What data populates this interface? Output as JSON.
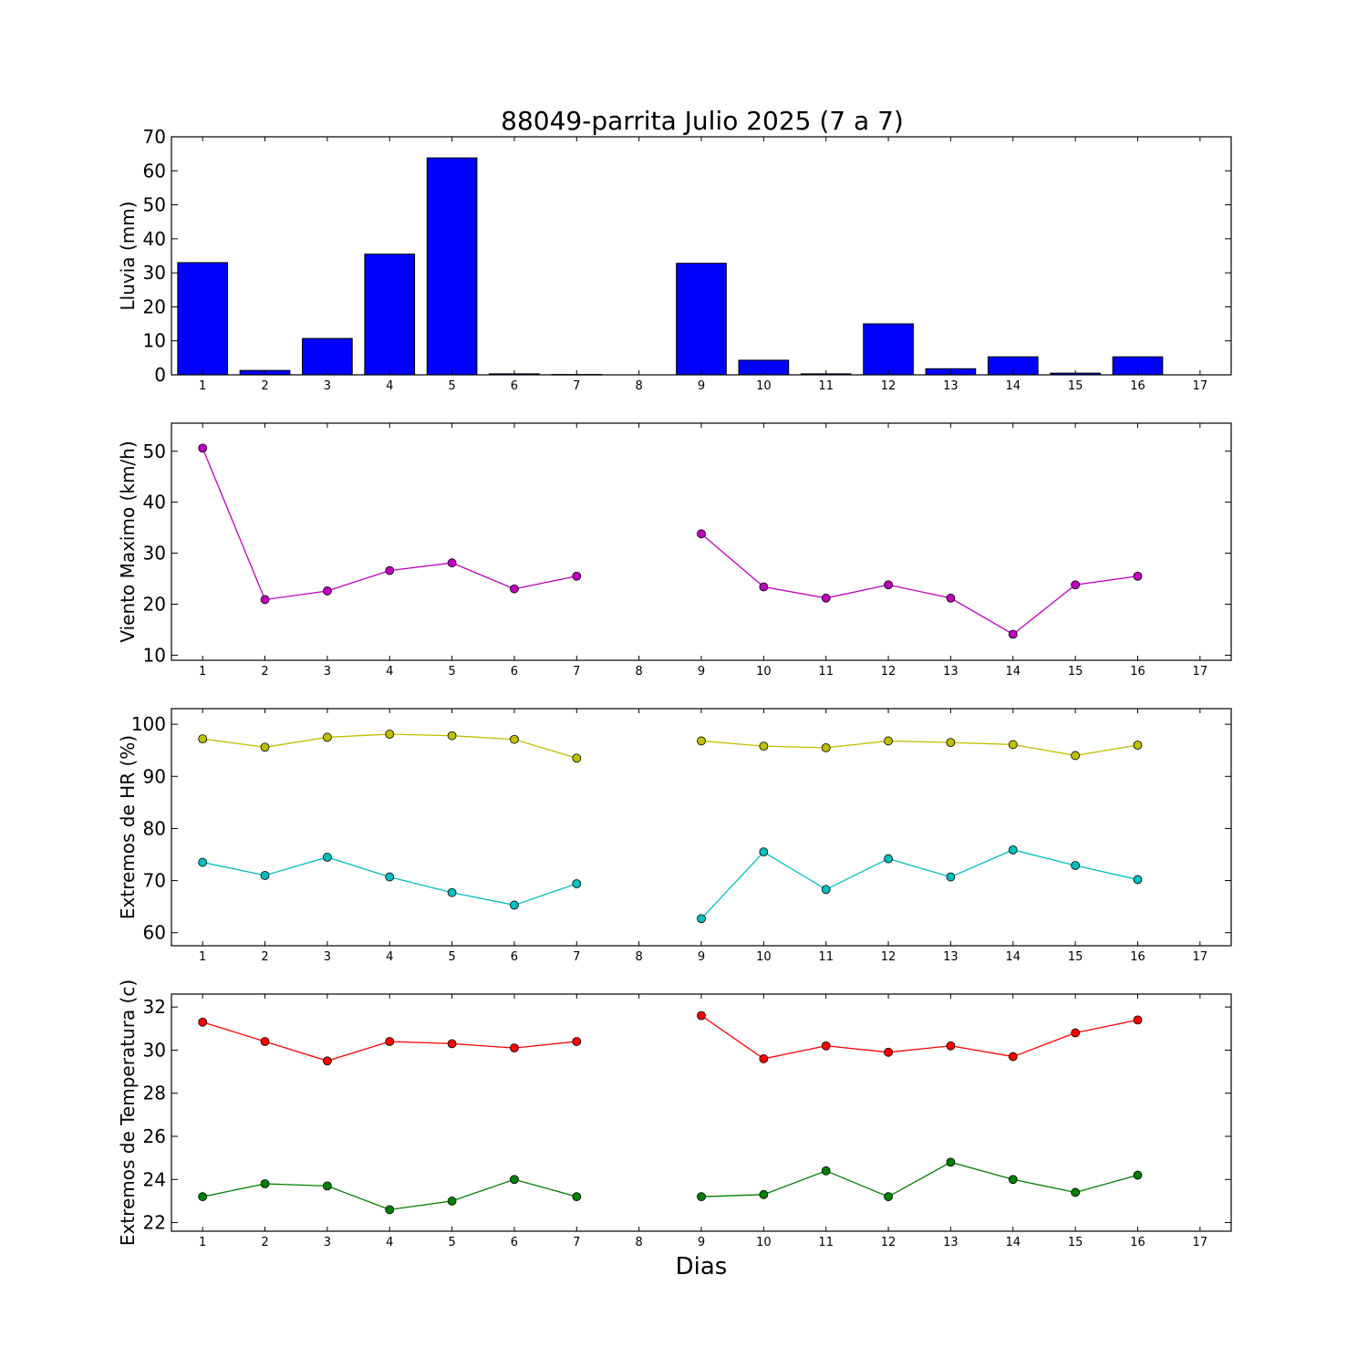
{
  "chart_data": [
    {
      "type": "bar",
      "title": "88049-parrita Julio 2025  (7 a 7)",
      "ylabel": "Lluvia (mm)",
      "xlabel": "",
      "x_ticks": [
        1,
        2,
        3,
        4,
        5,
        6,
        7,
        8,
        9,
        10,
        11,
        12,
        13,
        14,
        15,
        16,
        17
      ],
      "xlim": [
        0.5,
        17.5
      ],
      "ylim": [
        0,
        70
      ],
      "y_ticks": [
        0,
        10,
        20,
        30,
        40,
        50,
        60,
        70
      ],
      "categories": [
        1,
        2,
        3,
        4,
        5,
        6,
        7,
        8,
        9,
        10,
        11,
        12,
        13,
        14,
        15,
        16
      ],
      "values": [
        33.0,
        1.3,
        10.7,
        35.5,
        63.8,
        0.3,
        0.1,
        null,
        32.8,
        4.3,
        0.3,
        15.0,
        1.8,
        5.3,
        0.5,
        5.3
      ],
      "color": "#0000ff",
      "grid": false
    },
    {
      "type": "line",
      "title": "",
      "ylabel": "Viento Maximo (km/h)",
      "xlabel": "",
      "x_ticks": [
        1,
        2,
        3,
        4,
        5,
        6,
        7,
        8,
        9,
        10,
        11,
        12,
        13,
        14,
        15,
        16,
        17
      ],
      "xlim": [
        0.5,
        17.5
      ],
      "ylim": [
        9,
        55.5
      ],
      "y_ticks": [
        10,
        20,
        30,
        40,
        50
      ],
      "x": [
        1,
        2,
        3,
        4,
        5,
        6,
        7,
        8,
        9,
        10,
        11,
        12,
        13,
        14,
        15,
        16
      ],
      "series": [
        {
          "values": [
            50.6,
            20.9,
            22.6,
            26.6,
            28.1,
            23.0,
            25.5,
            null,
            33.8,
            23.4,
            21.2,
            23.8,
            21.2,
            14.1,
            23.8,
            25.5
          ],
          "color": "#bf00bf"
        }
      ],
      "grid": false
    },
    {
      "type": "line",
      "title": "",
      "ylabel": "Extremos de HR (%)",
      "xlabel": "",
      "x_ticks": [
        1,
        2,
        3,
        4,
        5,
        6,
        7,
        8,
        9,
        10,
        11,
        12,
        13,
        14,
        15,
        16,
        17
      ],
      "xlim": [
        0.5,
        17.5
      ],
      "ylim": [
        57.5,
        103
      ],
      "y_ticks": [
        60,
        70,
        80,
        90,
        100
      ],
      "x": [
        1,
        2,
        3,
        4,
        5,
        6,
        7,
        8,
        9,
        10,
        11,
        12,
        13,
        14,
        15,
        16
      ],
      "series": [
        {
          "values": [
            97.2,
            95.6,
            97.5,
            98.1,
            97.8,
            97.1,
            93.5,
            null,
            96.8,
            95.8,
            95.5,
            96.8,
            96.5,
            96.1,
            94.0,
            96.0
          ],
          "color": "#bfbf00"
        },
        {
          "values": [
            73.5,
            71.0,
            74.5,
            70.7,
            67.7,
            65.3,
            69.4,
            null,
            62.7,
            75.5,
            68.3,
            74.2,
            70.7,
            75.9,
            72.9,
            70.2
          ],
          "color": "#00bfbf"
        }
      ],
      "grid": false
    },
    {
      "type": "line",
      "title": "",
      "ylabel": "Extremos de Temperatura (c)",
      "xlabel": "Dias",
      "x_ticks": [
        1,
        2,
        3,
        4,
        5,
        6,
        7,
        8,
        9,
        10,
        11,
        12,
        13,
        14,
        15,
        16,
        17
      ],
      "xlim": [
        0.5,
        17.5
      ],
      "ylim": [
        21.6,
        32.6
      ],
      "y_ticks": [
        22,
        24,
        26,
        28,
        30,
        32
      ],
      "x": [
        1,
        2,
        3,
        4,
        5,
        6,
        7,
        8,
        9,
        10,
        11,
        12,
        13,
        14,
        15,
        16
      ],
      "series": [
        {
          "values": [
            31.3,
            30.4,
            29.5,
            30.4,
            30.3,
            30.1,
            30.4,
            null,
            31.6,
            29.6,
            30.2,
            29.9,
            30.2,
            29.7,
            30.8,
            31.4
          ],
          "color": "#ff0000"
        },
        {
          "values": [
            23.2,
            23.8,
            23.7,
            22.6,
            23.0,
            24.0,
            23.2,
            null,
            23.2,
            23.3,
            24.4,
            23.2,
            24.8,
            24.0,
            23.4,
            24.2
          ],
          "color": "#008000"
        }
      ],
      "grid": false
    }
  ]
}
